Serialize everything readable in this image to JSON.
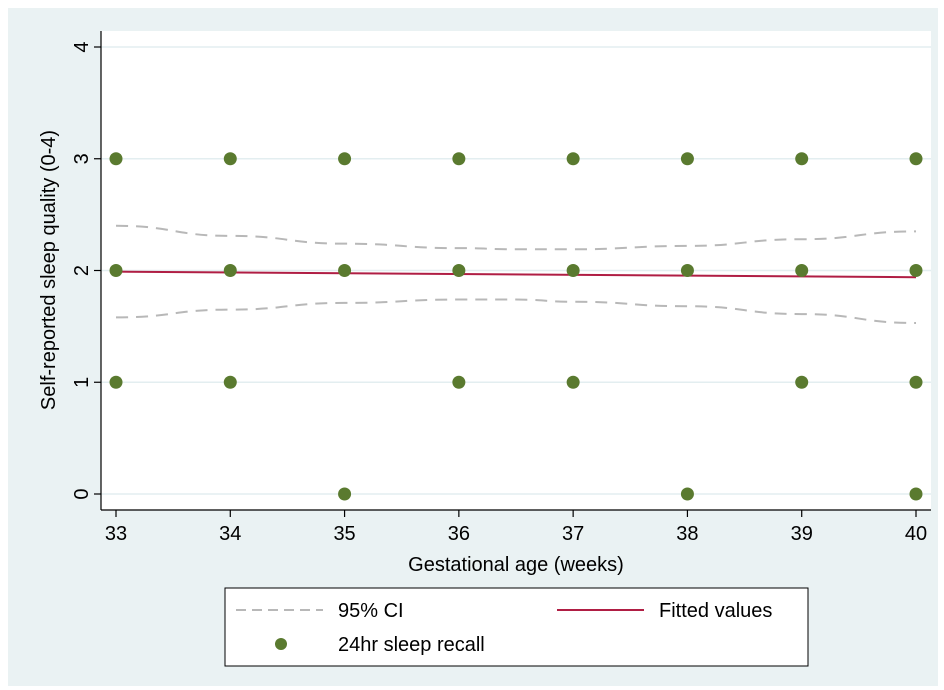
{
  "chart_data": {
    "type": "scatter",
    "title": "",
    "xlabel": "Gestational age (weeks)",
    "ylabel": "Self-reported sleep quality (0-4)",
    "xlim": [
      33,
      40
    ],
    "ylim": [
      0,
      4
    ],
    "x_ticks": [
      "33",
      "34",
      "35",
      "36",
      "37",
      "38",
      "39",
      "40"
    ],
    "y_ticks": [
      "0",
      "1",
      "2",
      "3",
      "4"
    ],
    "grid": "horizontal",
    "legend_position": "bottom",
    "colors": {
      "points": "#5a7a2f",
      "fitted": "#b01e44",
      "ci": "#b8b8b8",
      "plot_bg": "#ffffff",
      "outer_bg": "#eaf2f3",
      "grid": "#e3eef0"
    },
    "series": [
      {
        "name": "24hr sleep recall",
        "kind": "points",
        "points": [
          {
            "x": 33,
            "y": 3
          },
          {
            "x": 33,
            "y": 2
          },
          {
            "x": 33,
            "y": 1
          },
          {
            "x": 34,
            "y": 3
          },
          {
            "x": 34,
            "y": 2
          },
          {
            "x": 34,
            "y": 1
          },
          {
            "x": 35,
            "y": 3
          },
          {
            "x": 35,
            "y": 2
          },
          {
            "x": 35,
            "y": 0
          },
          {
            "x": 36,
            "y": 3
          },
          {
            "x": 36,
            "y": 2
          },
          {
            "x": 36,
            "y": 1
          },
          {
            "x": 37,
            "y": 3
          },
          {
            "x": 37,
            "y": 2
          },
          {
            "x": 37,
            "y": 1
          },
          {
            "x": 38,
            "y": 3
          },
          {
            "x": 38,
            "y": 2
          },
          {
            "x": 38,
            "y": 0
          },
          {
            "x": 39,
            "y": 3
          },
          {
            "x": 39,
            "y": 2
          },
          {
            "x": 39,
            "y": 1
          },
          {
            "x": 40,
            "y": 3
          },
          {
            "x": 40,
            "y": 2
          },
          {
            "x": 40,
            "y": 1
          },
          {
            "x": 40,
            "y": 0
          }
        ]
      },
      {
        "name": "Fitted values",
        "kind": "line",
        "points": [
          {
            "x": 33,
            "y": 1.99
          },
          {
            "x": 40,
            "y": 1.94
          }
        ]
      },
      {
        "name": "95% CI",
        "kind": "ci",
        "upper": [
          {
            "x": 33,
            "y": 2.4
          },
          {
            "x": 34,
            "y": 2.31
          },
          {
            "x": 35,
            "y": 2.24
          },
          {
            "x": 36,
            "y": 2.2
          },
          {
            "x": 36.5,
            "y": 2.19
          },
          {
            "x": 37,
            "y": 2.19
          },
          {
            "x": 38,
            "y": 2.22
          },
          {
            "x": 39,
            "y": 2.28
          },
          {
            "x": 40,
            "y": 2.35
          }
        ],
        "lower": [
          {
            "x": 33,
            "y": 1.58
          },
          {
            "x": 34,
            "y": 1.65
          },
          {
            "x": 35,
            "y": 1.71
          },
          {
            "x": 36,
            "y": 1.74
          },
          {
            "x": 36.5,
            "y": 1.74
          },
          {
            "x": 37,
            "y": 1.72
          },
          {
            "x": 38,
            "y": 1.68
          },
          {
            "x": 39,
            "y": 1.61
          },
          {
            "x": 40,
            "y": 1.53
          }
        ]
      }
    ],
    "legend": {
      "ci_label": "95% CI",
      "fitted_label": "Fitted values",
      "points_label": "24hr sleep recall"
    }
  }
}
